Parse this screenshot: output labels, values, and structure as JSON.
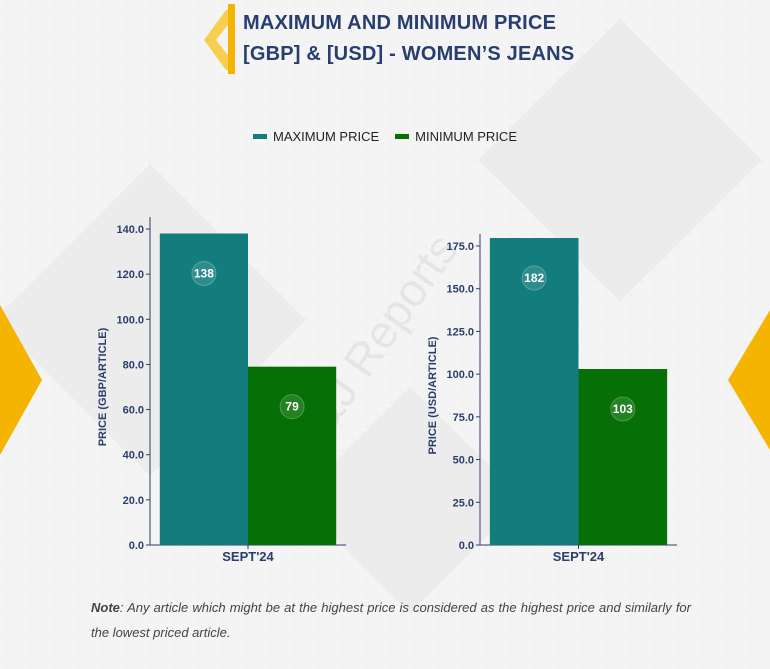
{
  "title": {
    "line1": "MAXIMUM AND MINIMUM PRICE",
    "line2": "[GBP] & [USD] - WOMEN’S JEANS"
  },
  "legend": [
    {
      "label": "MAXIMUM PRICE",
      "color": "#137d7d"
    },
    {
      "label": "MINIMUM PRICE",
      "color": "#067006"
    }
  ],
  "colors": {
    "accent": "#f5b400",
    "title": "#283e70",
    "axis": "#2c3e6b"
  },
  "chart_data": [
    {
      "type": "bar",
      "categories": [
        "SEPT'24"
      ],
      "series": [
        {
          "name": "MAXIMUM PRICE",
          "values": [
            138
          ]
        },
        {
          "name": "MINIMUM PRICE",
          "values": [
            79
          ]
        }
      ],
      "ylabel": "PRICE (GBP/ARTICLE)",
      "ylim": [
        0,
        140
      ],
      "yticks": [
        "0.0",
        "20.0",
        "40.0",
        "60.0",
        "80.0",
        "100.0",
        "120.0",
        "140.0"
      ],
      "data_labels": [
        "138",
        "79"
      ],
      "grid": false
    },
    {
      "type": "bar",
      "categories": [
        "SEPT'24"
      ],
      "series": [
        {
          "name": "MAXIMUM PRICE",
          "values": [
            182
          ]
        },
        {
          "name": "MINIMUM PRICE",
          "values": [
            103
          ]
        }
      ],
      "ylabel": "PRICE (USD/ARTICLE)",
      "ylim": [
        0,
        175
      ],
      "yticks": [
        "0.0",
        "25.0",
        "50.0",
        "75.0",
        "100.0",
        "125.0",
        "150.0",
        "175.0"
      ],
      "data_labels": [
        "182",
        "103"
      ],
      "grid": false
    }
  ],
  "watermark": "D&J Reports",
  "note": {
    "label": "Note",
    "text": ": Any article which might be at the highest price is considered as the highest price and similarly for the lowest priced article."
  }
}
